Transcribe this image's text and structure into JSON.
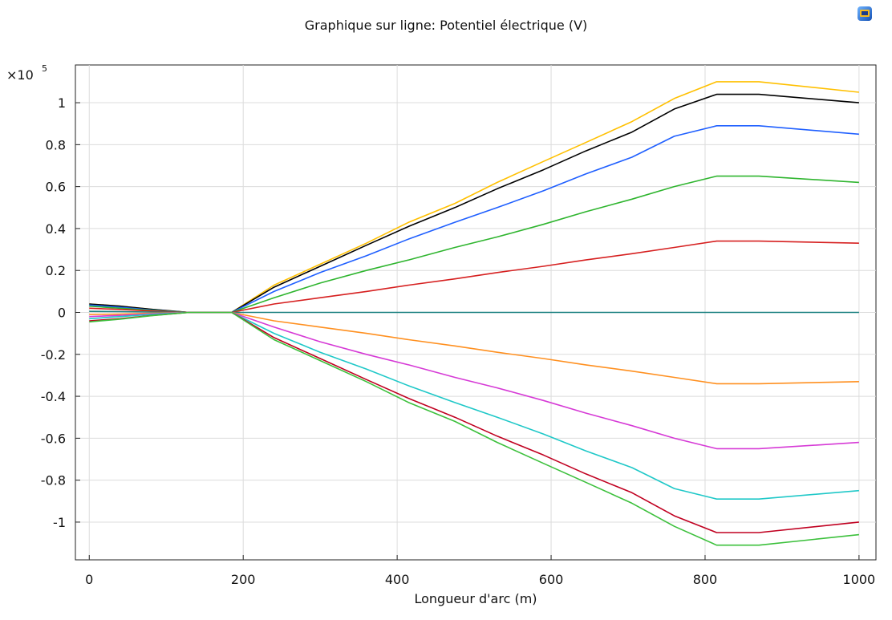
{
  "chart_data": {
    "type": "line",
    "title": "Graphique sur ligne: Potentiel électrique (V)",
    "xlabel": "Longueur d'arc (m)",
    "ylabel": "",
    "multiplier_label": "×10",
    "multiplier_exponent": "5",
    "xlim": [
      -18,
      1022
    ],
    "ylim": [
      -1.18,
      1.18
    ],
    "x_ticks": [
      0,
      200,
      400,
      600,
      800,
      1000
    ],
    "x_tick_labels": [
      "0",
      "200",
      "400",
      "600",
      "800",
      "1000"
    ],
    "y_ticks": [
      1,
      0.8,
      0.6,
      0.4,
      0.2,
      0,
      -0.2,
      -0.4,
      -0.6,
      -0.8,
      -1
    ],
    "y_tick_labels": [
      "1",
      "0.8",
      "0.6",
      "0.4",
      "0.2",
      "0",
      "-0.2",
      "-0.4",
      "-0.6",
      "-0.8",
      "-1"
    ],
    "grid": true,
    "x": [
      0,
      40,
      80,
      130,
      185,
      240,
      300,
      360,
      415,
      475,
      530,
      590,
      645,
      705,
      760,
      815,
      870,
      1000
    ],
    "series": [
      {
        "color": "#ffc000",
        "values": [
          0.04,
          0.03,
          0.015,
          0,
          0,
          0.13,
          0.23,
          0.33,
          0.43,
          0.52,
          0.62,
          0.72,
          0.81,
          0.91,
          1.02,
          1.1,
          1.1,
          1.05
        ]
      },
      {
        "color": "#000000",
        "values": [
          0.04,
          0.03,
          0.015,
          0,
          0,
          0.12,
          0.22,
          0.32,
          0.41,
          0.5,
          0.59,
          0.68,
          0.77,
          0.86,
          0.97,
          1.04,
          1.04,
          1.0
        ]
      },
      {
        "color": "#1f5fff",
        "values": [
          0.035,
          0.025,
          0.012,
          0,
          0,
          0.1,
          0.19,
          0.27,
          0.35,
          0.43,
          0.5,
          0.58,
          0.66,
          0.74,
          0.84,
          0.89,
          0.89,
          0.85
        ]
      },
      {
        "color": "#2fb52f",
        "values": [
          0.03,
          0.02,
          0.01,
          0,
          0,
          0.07,
          0.14,
          0.2,
          0.25,
          0.31,
          0.36,
          0.42,
          0.48,
          0.54,
          0.6,
          0.65,
          0.65,
          0.62
        ]
      },
      {
        "color": "#d62020",
        "values": [
          0.02,
          0.014,
          0.007,
          0,
          0,
          0.04,
          0.07,
          0.1,
          0.13,
          0.16,
          0.19,
          0.22,
          0.25,
          0.28,
          0.31,
          0.34,
          0.34,
          0.33
        ]
      },
      {
        "color": "#1a8080",
        "values": [
          0.005,
          0.004,
          0.002,
          0,
          0,
          0,
          0,
          0,
          0,
          0,
          0,
          0,
          0,
          0,
          0,
          0,
          0,
          0
        ]
      },
      {
        "color": "#ff9020",
        "values": [
          -0.01,
          -0.008,
          -0.004,
          0,
          0,
          -0.04,
          -0.07,
          -0.1,
          -0.13,
          -0.16,
          -0.19,
          -0.22,
          -0.25,
          -0.28,
          -0.31,
          -0.34,
          -0.34,
          -0.33
        ]
      },
      {
        "color": "#d63ad6",
        "values": [
          -0.02,
          -0.014,
          -0.007,
          0,
          0,
          -0.07,
          -0.14,
          -0.2,
          -0.25,
          -0.31,
          -0.36,
          -0.42,
          -0.48,
          -0.54,
          -0.6,
          -0.65,
          -0.65,
          -0.62
        ]
      },
      {
        "color": "#1fc8c8",
        "values": [
          -0.03,
          -0.02,
          -0.01,
          0,
          0,
          -0.1,
          -0.19,
          -0.27,
          -0.35,
          -0.43,
          -0.5,
          -0.58,
          -0.66,
          -0.74,
          -0.84,
          -0.89,
          -0.89,
          -0.85
        ]
      },
      {
        "color": "#c00020",
        "values": [
          -0.04,
          -0.03,
          -0.015,
          0,
          0,
          -0.12,
          -0.22,
          -0.32,
          -0.41,
          -0.5,
          -0.59,
          -0.68,
          -0.77,
          -0.86,
          -0.97,
          -1.05,
          -1.05,
          -1.0
        ]
      },
      {
        "color": "#3cc03c",
        "values": [
          -0.045,
          -0.032,
          -0.016,
          0,
          0,
          -0.13,
          -0.23,
          -0.33,
          -0.43,
          -0.52,
          -0.62,
          -0.72,
          -0.81,
          -0.91,
          -1.02,
          -1.11,
          -1.11,
          -1.06
        ]
      }
    ]
  }
}
